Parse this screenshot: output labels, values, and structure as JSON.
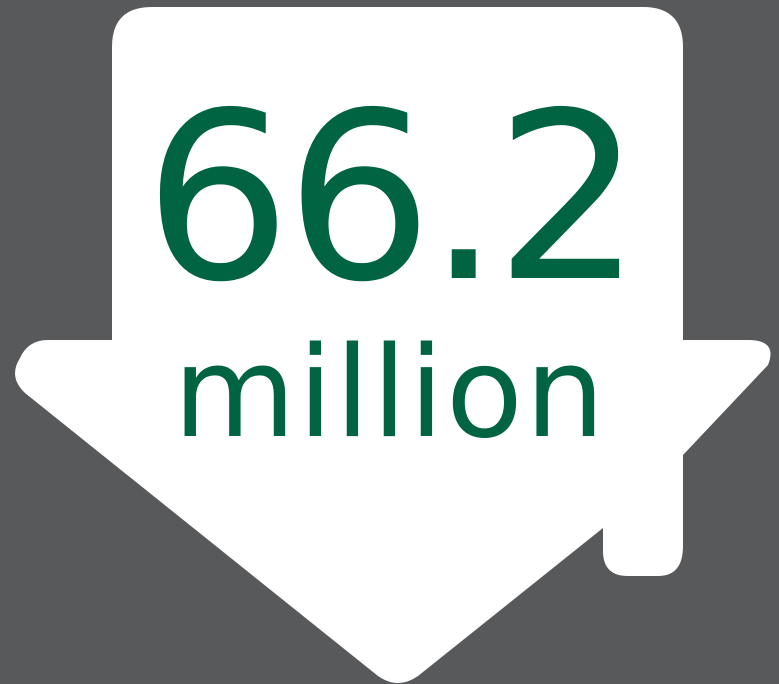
{
  "stat": {
    "value": "66.2",
    "unit": "million"
  },
  "colors": {
    "background": "#58595b",
    "shape_fill": "#ffffff",
    "text": "#006341"
  },
  "icon": "house-down-arrow-icon"
}
